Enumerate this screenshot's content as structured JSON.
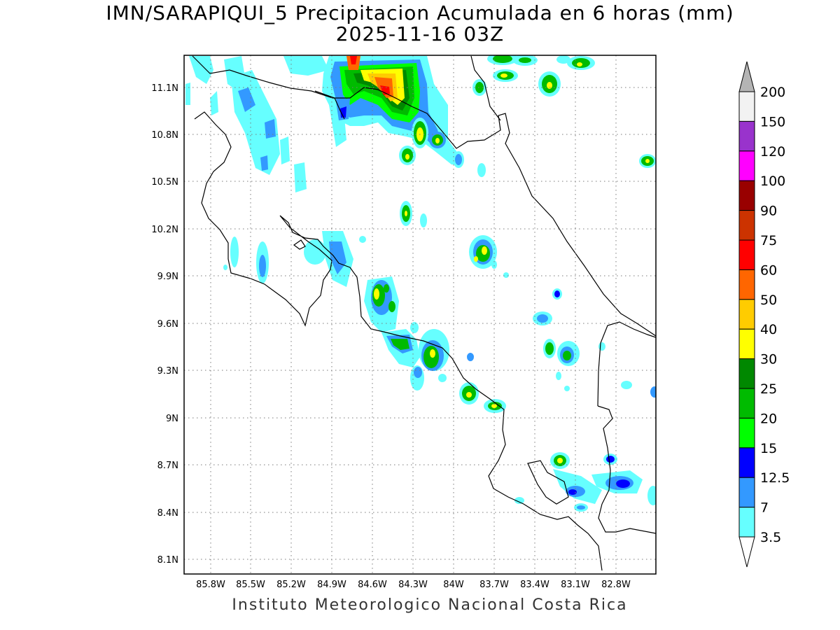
{
  "header": {
    "title_line1": "IMN/SARAPIQUI_5 Precipitacion Acumulada en 6 horas (mm)",
    "title_line2": "2025-11-16 03Z"
  },
  "footer": "Instituto Meteorologico Nacional Costa Rica",
  "axes": {
    "lat_labels": [
      "11.1N",
      "10.8N",
      "10.5N",
      "10.2N",
      "9.9N",
      "9.6N",
      "9.3N",
      "9N",
      "8.7N",
      "8.4N",
      "8.1N"
    ],
    "lon_labels": [
      "85.8W",
      "85.5W",
      "85.2W",
      "84.9W",
      "84.6W",
      "84.3W",
      "84W",
      "83.7W",
      "83.4W",
      "83.1W",
      "82.8W"
    ],
    "grid": "dotted"
  },
  "colorbar": {
    "labels": [
      "200",
      "150",
      "120",
      "100",
      "90",
      "75",
      "60",
      "50",
      "40",
      "30",
      "25",
      "20",
      "15",
      "12.5",
      "7",
      "3.5"
    ],
    "colors": [
      "#b4b4b4",
      "#f2f2f2",
      "#9933cc",
      "#ff00ff",
      "#990000",
      "#cc3300",
      "#ff0000",
      "#ff6600",
      "#ffcc00",
      "#ffff00",
      "#008800",
      "#00bb00",
      "#00ff00",
      "#0000ff",
      "#3399ff",
      "#66ffff",
      "#ffffff"
    ]
  }
}
